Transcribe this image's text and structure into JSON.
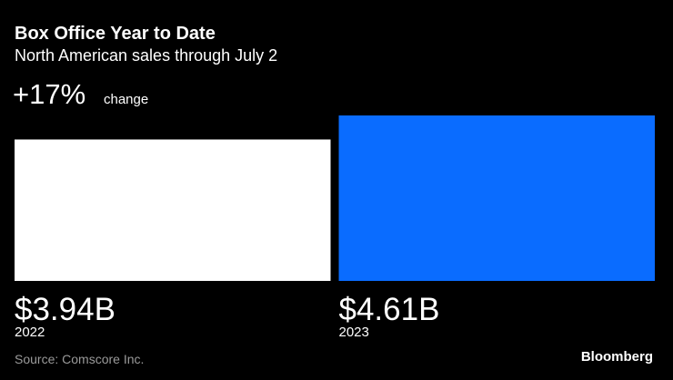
{
  "chart_data": {
    "type": "bar",
    "title": "Box Office Year to Date",
    "subtitle": "North American sales through July 2",
    "annotations": [
      "+17%",
      "change"
    ],
    "categories": [
      "2022",
      "2023"
    ],
    "values": [
      3.94,
      4.61
    ],
    "value_labels": [
      "$3.94B",
      "$4.61B"
    ],
    "colors": [
      "#ffffff",
      "#0a6cff"
    ],
    "source": "Source: Comscore Inc.",
    "brand": "Bloomberg"
  }
}
